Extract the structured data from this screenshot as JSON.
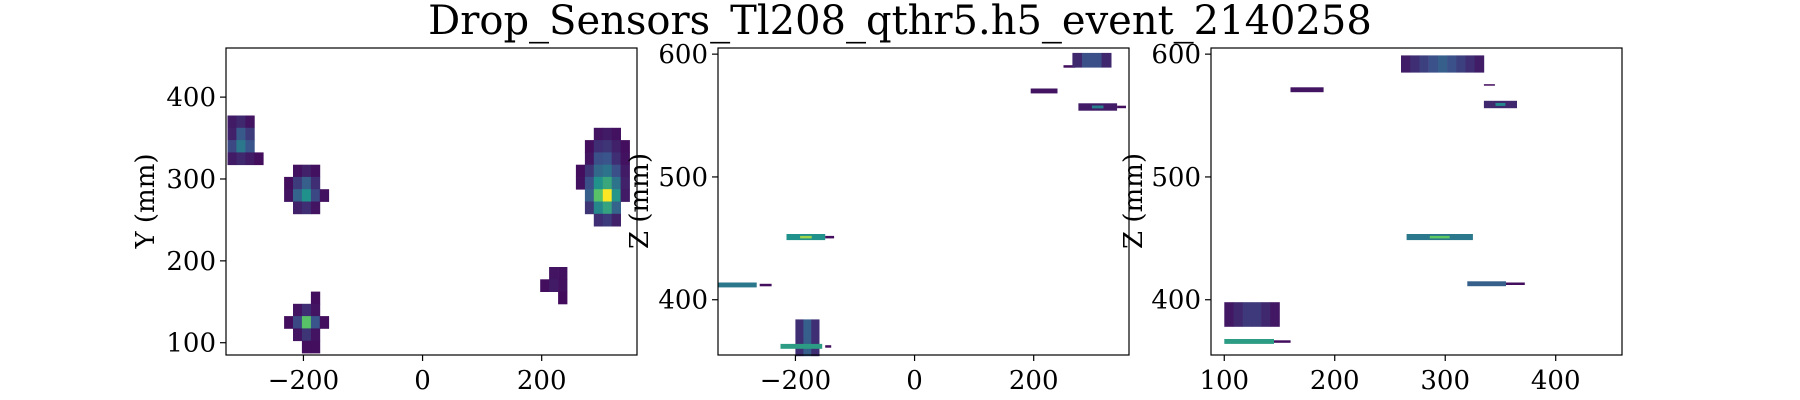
{
  "figure": {
    "title": "Drop_Sensors_Tl208_qthr5.h5_event_2140258"
  },
  "colors": {
    "colormap": "viridis"
  },
  "chart_data": [
    {
      "type": "heatmap",
      "name": "xy",
      "xlabel": "",
      "ylabel": "Y (mm)",
      "xlim": [
        -330,
        360
      ],
      "ylim": [
        85,
        460
      ],
      "xticks": [
        -200,
        0,
        200
      ],
      "yticks": [
        100,
        200,
        300,
        400
      ],
      "cells": [
        [
          -320,
          370,
          0.08
        ],
        [
          -305,
          370,
          0.12
        ],
        [
          -290,
          370,
          0.06
        ],
        [
          -320,
          355,
          0.1
        ],
        [
          -305,
          355,
          0.28
        ],
        [
          -290,
          355,
          0.18
        ],
        [
          -320,
          340,
          0.22
        ],
        [
          -305,
          340,
          0.4
        ],
        [
          -290,
          340,
          0.26
        ],
        [
          -320,
          325,
          0.08
        ],
        [
          -305,
          325,
          0.12
        ],
        [
          -290,
          325,
          0.08
        ],
        [
          -275,
          325,
          0.04
        ],
        [
          -210,
          310,
          0.05
        ],
        [
          -195,
          310,
          0.1
        ],
        [
          -180,
          310,
          0.05
        ],
        [
          -225,
          295,
          0.04
        ],
        [
          -210,
          295,
          0.18
        ],
        [
          -195,
          295,
          0.3
        ],
        [
          -180,
          295,
          0.14
        ],
        [
          -225,
          280,
          0.06
        ],
        [
          -210,
          280,
          0.32
        ],
        [
          -195,
          280,
          0.5
        ],
        [
          -180,
          280,
          0.22
        ],
        [
          -165,
          280,
          0.05
        ],
        [
          -210,
          265,
          0.1
        ],
        [
          -195,
          265,
          0.14
        ],
        [
          -180,
          265,
          0.06
        ],
        [
          -180,
          155,
          0.04
        ],
        [
          -210,
          140,
          0.06
        ],
        [
          -195,
          140,
          0.14
        ],
        [
          -180,
          140,
          0.06
        ],
        [
          -225,
          125,
          0.04
        ],
        [
          -210,
          125,
          0.22
        ],
        [
          -195,
          125,
          0.72
        ],
        [
          -180,
          125,
          0.26
        ],
        [
          -165,
          125,
          0.04
        ],
        [
          -210,
          110,
          0.06
        ],
        [
          -195,
          110,
          0.16
        ],
        [
          -180,
          110,
          0.06
        ],
        [
          -195,
          95,
          0.04
        ],
        [
          -180,
          95,
          0.04
        ],
        [
          220,
          185,
          0.06
        ],
        [
          235,
          185,
          0.05
        ],
        [
          205,
          170,
          0.04
        ],
        [
          220,
          170,
          0.08
        ],
        [
          235,
          170,
          0.05
        ],
        [
          235,
          155,
          0.03
        ],
        [
          295,
          355,
          0.06
        ],
        [
          310,
          355,
          0.08
        ],
        [
          325,
          355,
          0.05
        ],
        [
          280,
          340,
          0.04
        ],
        [
          295,
          340,
          0.14
        ],
        [
          310,
          340,
          0.16
        ],
        [
          325,
          340,
          0.1
        ],
        [
          340,
          340,
          0.04
        ],
        [
          280,
          325,
          0.06
        ],
        [
          295,
          325,
          0.24
        ],
        [
          310,
          325,
          0.26
        ],
        [
          325,
          325,
          0.14
        ],
        [
          340,
          325,
          0.05
        ],
        [
          265,
          310,
          0.04
        ],
        [
          280,
          310,
          0.16
        ],
        [
          295,
          310,
          0.34
        ],
        [
          310,
          310,
          0.38
        ],
        [
          325,
          310,
          0.24
        ],
        [
          340,
          310,
          0.08
        ],
        [
          265,
          295,
          0.05
        ],
        [
          280,
          295,
          0.24
        ],
        [
          295,
          295,
          0.5
        ],
        [
          310,
          295,
          0.6
        ],
        [
          325,
          295,
          0.38
        ],
        [
          340,
          295,
          0.1
        ],
        [
          280,
          280,
          0.3
        ],
        [
          295,
          280,
          0.72
        ],
        [
          310,
          280,
          1.0
        ],
        [
          325,
          280,
          0.52
        ],
        [
          340,
          280,
          0.08
        ],
        [
          280,
          265,
          0.16
        ],
        [
          295,
          265,
          0.46
        ],
        [
          310,
          265,
          0.58
        ],
        [
          325,
          265,
          0.32
        ],
        [
          295,
          250,
          0.14
        ],
        [
          310,
          250,
          0.18
        ],
        [
          325,
          250,
          0.1
        ]
      ]
    },
    {
      "type": "heatmap",
      "name": "xz",
      "xlabel": "",
      "ylabel": "Z (mm)",
      "xlim": [
        -330,
        360
      ],
      "ylim": [
        355,
        605
      ],
      "xticks": [
        -200,
        0,
        200
      ],
      "yticks": [
        400,
        500,
        600
      ],
      "strips": [
        [
          -330,
          -265,
          412,
          0.4,
          4
        ],
        [
          -260,
          -240,
          412,
          0.04,
          2
        ],
        [
          -215,
          -150,
          451,
          0.5,
          5
        ],
        [
          -150,
          -135,
          451,
          0.04,
          2
        ],
        [
          -200,
          -160,
          369,
          0.3,
          30,
          "block"
        ],
        [
          -225,
          -155,
          362,
          0.55,
          4
        ],
        [
          -150,
          -140,
          362,
          0.04,
          2
        ],
        [
          195,
          240,
          570,
          0.06,
          4
        ],
        [
          250,
          270,
          590,
          0.04,
          2
        ],
        [
          265,
          330,
          595,
          0.3,
          12,
          "block"
        ],
        [
          275,
          340,
          557,
          0.08,
          6
        ],
        [
          340,
          355,
          557,
          0.04,
          2
        ]
      ]
    },
    {
      "type": "heatmap",
      "name": "yz",
      "xlabel": "",
      "ylabel": "Z (mm)",
      "xlim": [
        88,
        460
      ],
      "ylim": [
        355,
        605
      ],
      "xticks": [
        100,
        200,
        300,
        400
      ],
      "yticks": [
        400,
        500,
        600
      ],
      "strips": [
        [
          100,
          150,
          388,
          0.2,
          20,
          "block"
        ],
        [
          100,
          145,
          366,
          0.55,
          4
        ],
        [
          145,
          160,
          366,
          0.04,
          2
        ],
        [
          160,
          190,
          571,
          0.06,
          4
        ],
        [
          260,
          335,
          592,
          0.3,
          14,
          "block"
        ],
        [
          335,
          345,
          575,
          0.03,
          1
        ],
        [
          335,
          365,
          559,
          0.12,
          6
        ],
        [
          265,
          325,
          451,
          0.4,
          5
        ],
        [
          320,
          355,
          413,
          0.3,
          4
        ],
        [
          355,
          372,
          413,
          0.04,
          2
        ]
      ]
    }
  ]
}
